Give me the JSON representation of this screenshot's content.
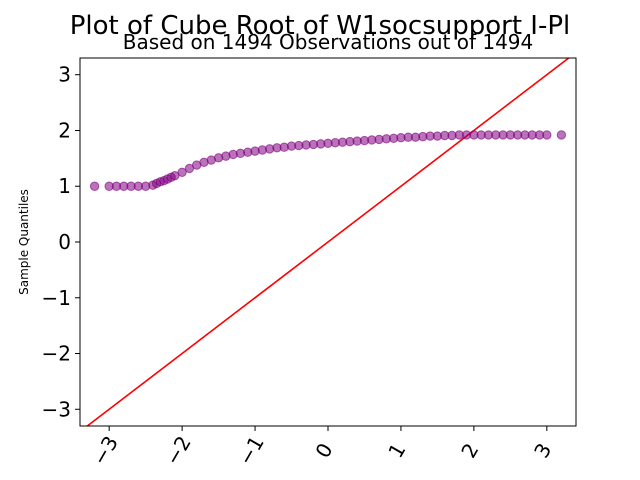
{
  "chart_data": {
    "type": "scatter",
    "title": "Plot of Cube Root of W1socsupport I-Pl",
    "subtitle": "Based on 1494 Observations out of 1494",
    "xlabel": "",
    "ylabel": "Sample Quantiles",
    "xlim": [
      -3.4,
      3.4
    ],
    "ylim": [
      -3.3,
      3.3
    ],
    "x_ticks": [
      -3,
      -2,
      -1,
      0,
      1,
      2,
      3
    ],
    "x_tick_labels": [
      "−3",
      "−2",
      "−1",
      "0",
      "1",
      "2",
      "3"
    ],
    "y_ticks": [
      3,
      2,
      1,
      0,
      -1,
      -2,
      -3
    ],
    "y_tick_labels": [
      "3",
      "2",
      "1",
      "0",
      "−1",
      "−2",
      "−3"
    ],
    "grid": false,
    "series": [
      {
        "color": "#800080",
        "x": [
          -3.2,
          -3.0,
          -2.9,
          -2.8,
          -2.7,
          -2.6,
          -2.5,
          -2.4,
          -2.35,
          -2.3,
          -2.25,
          -2.2,
          -2.15,
          -2.1,
          -2.0,
          -1.9,
          -1.8,
          -1.7,
          -1.6,
          -1.5,
          -1.4,
          -1.3,
          -1.2,
          -1.1,
          -1.0,
          -0.9,
          -0.8,
          -0.7,
          -0.6,
          -0.5,
          -0.4,
          -0.3,
          -0.2,
          -0.1,
          0.0,
          0.1,
          0.2,
          0.3,
          0.4,
          0.5,
          0.6,
          0.7,
          0.8,
          0.9,
          1.0,
          1.1,
          1.2,
          1.3,
          1.4,
          1.5,
          1.6,
          1.7,
          1.8,
          1.9,
          2.0,
          2.1,
          2.2,
          2.3,
          2.4,
          2.5,
          2.6,
          2.7,
          2.8,
          2.9,
          3.0,
          3.2
        ],
        "y": [
          1.0,
          1.0,
          1.0,
          1.0,
          1.0,
          1.0,
          1.0,
          1.02,
          1.05,
          1.08,
          1.1,
          1.13,
          1.16,
          1.19,
          1.25,
          1.32,
          1.38,
          1.43,
          1.47,
          1.51,
          1.54,
          1.57,
          1.59,
          1.61,
          1.63,
          1.65,
          1.67,
          1.69,
          1.7,
          1.72,
          1.73,
          1.74,
          1.75,
          1.76,
          1.77,
          1.78,
          1.79,
          1.8,
          1.81,
          1.82,
          1.83,
          1.84,
          1.85,
          1.86,
          1.87,
          1.88,
          1.88,
          1.89,
          1.9,
          1.9,
          1.91,
          1.91,
          1.92,
          1.92,
          1.92,
          1.92,
          1.92,
          1.92,
          1.92,
          1.92,
          1.92,
          1.92,
          1.92,
          1.92,
          1.92,
          1.92
        ]
      }
    ],
    "reference_line": {
      "color": "#ff0000",
      "x": [
        -3.4,
        3.4
      ],
      "y": [
        -3.4,
        3.4
      ]
    }
  }
}
